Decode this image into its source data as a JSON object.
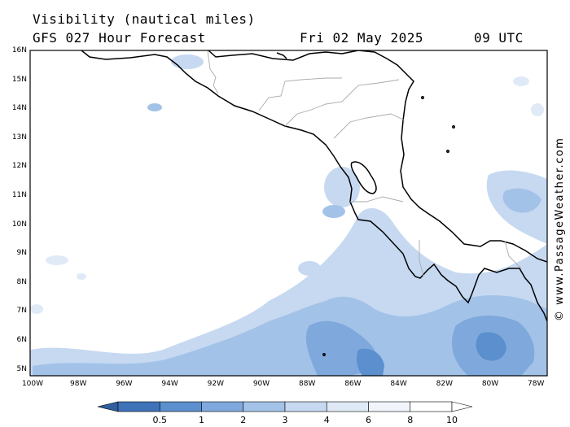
{
  "title": {
    "line1": "Visibility (nautical miles)",
    "line2": "GFS 027 Hour Forecast",
    "date": "Fri 02 May 2025",
    "hour": "09 UTC"
  },
  "credit": "© www.PassageWeather.com",
  "axes": {
    "lat_labels": [
      "16N",
      "15N",
      "14N",
      "13N",
      "12N",
      "11N",
      "10N",
      "9N",
      "8N",
      "7N",
      "6N",
      "5N"
    ],
    "lon_labels": [
      "100W",
      "98W",
      "96W",
      "94W",
      "92W",
      "90W",
      "88W",
      "86W",
      "84W",
      "82W",
      "80W",
      "78W"
    ]
  },
  "colorbar": {
    "labels": [
      "0.5",
      "1",
      "2",
      "3",
      "4",
      "6",
      "8",
      "10"
    ],
    "colors": [
      "#3e73b8",
      "#5b8fce",
      "#7fa9dc",
      "#a3c2e8",
      "#c6d9f1",
      "#e0eaf7",
      "#f1f5fb",
      "#ffffff"
    ]
  },
  "map": {
    "land_color": "#ffffff",
    "sea_color": "#ffffff",
    "coast_color": "#000000",
    "border_color": "#aaaaaa"
  }
}
